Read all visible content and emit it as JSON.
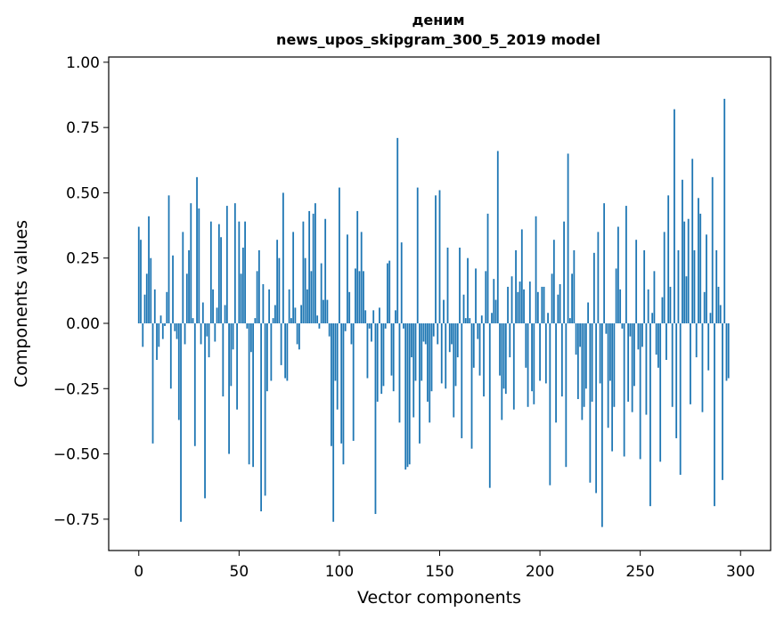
{
  "chart_data": {
    "type": "bar",
    "title_line1": "деним",
    "title_line2": "news_upos_skipgram_300_5_2019 model",
    "xlabel": "Vector components",
    "ylabel": "Components values",
    "xlim": [
      -15,
      315
    ],
    "ylim": [
      -0.87,
      1.02
    ],
    "xticks": [
      0,
      50,
      100,
      150,
      200,
      250,
      300
    ],
    "yticks": [
      -0.75,
      -0.5,
      -0.25,
      0.0,
      0.25,
      0.5,
      0.75,
      1.0
    ],
    "ytick_labels": [
      "−0.75",
      "−0.50",
      "−0.25",
      "0.00",
      "0.25",
      "0.50",
      "0.75",
      "1.00"
    ],
    "bar_color": "#1f77b4",
    "values": [
      0.37,
      0.32,
      -0.09,
      0.11,
      0.19,
      0.41,
      0.25,
      -0.46,
      0.13,
      -0.14,
      -0.09,
      0.03,
      -0.06,
      -0.01,
      0.12,
      0.49,
      -0.25,
      0.26,
      -0.03,
      -0.06,
      -0.37,
      -0.76,
      0.35,
      -0.08,
      0.19,
      0.28,
      0.46,
      0.02,
      -0.47,
      0.56,
      0.44,
      -0.08,
      0.08,
      -0.67,
      -0.05,
      -0.13,
      0.39,
      0.13,
      -0.07,
      0.06,
      0.38,
      0.33,
      -0.28,
      0.07,
      0.45,
      -0.5,
      -0.24,
      -0.1,
      0.46,
      -0.33,
      0.39,
      0.19,
      0.29,
      0.39,
      -0.02,
      -0.54,
      -0.11,
      -0.55,
      0.02,
      0.2,
      0.28,
      -0.72,
      0.15,
      -0.66,
      -0.26,
      0.13,
      -0.22,
      0.02,
      0.07,
      0.32,
      0.25,
      -0.16,
      0.5,
      -0.21,
      -0.22,
      0.13,
      0.02,
      0.35,
      0.06,
      -0.08,
      -0.1,
      0.07,
      0.39,
      0.25,
      0.13,
      0.43,
      0.2,
      0.42,
      0.46,
      0.03,
      -0.02,
      0.23,
      0.09,
      0.4,
      0.09,
      -0.05,
      -0.47,
      -0.76,
      -0.22,
      -0.33,
      0.52,
      -0.46,
      -0.54,
      -0.03,
      0.34,
      0.12,
      -0.08,
      -0.45,
      0.21,
      0.43,
      0.2,
      0.35,
      0.2,
      0.05,
      -0.21,
      -0.02,
      -0.07,
      0.05,
      -0.73,
      -0.3,
      0.06,
      -0.27,
      -0.24,
      -0.02,
      0.23,
      0.24,
      -0.2,
      -0.26,
      0.05,
      0.71,
      -0.38,
      0.31,
      -0.02,
      -0.56,
      -0.55,
      -0.54,
      -0.13,
      -0.36,
      -0.22,
      0.52,
      -0.46,
      -0.22,
      -0.07,
      -0.08,
      -0.3,
      -0.38,
      -0.26,
      -0.05,
      0.49,
      -0.08,
      0.51,
      -0.23,
      0.09,
      -0.25,
      0.29,
      -0.11,
      -0.08,
      -0.36,
      -0.24,
      -0.13,
      0.29,
      -0.44,
      0.11,
      0.02,
      0.25,
      0.02,
      -0.48,
      -0.17,
      0.21,
      -0.06,
      -0.2,
      0.03,
      -0.28,
      0.2,
      0.42,
      -0.63,
      0.04,
      0.17,
      0.09,
      0.66,
      -0.2,
      -0.37,
      -0.25,
      -0.27,
      0.14,
      -0.13,
      0.18,
      -0.33,
      0.28,
      0.12,
      0.16,
      0.36,
      0.13,
      -0.17,
      -0.32,
      0.16,
      -0.26,
      -0.31,
      0.41,
      0.12,
      -0.22,
      0.14,
      0.14,
      -0.23,
      0.04,
      -0.62,
      0.19,
      0.32,
      -0.38,
      0.11,
      0.15,
      -0.28,
      0.39,
      -0.55,
      0.65,
      0.02,
      0.19,
      0.28,
      -0.12,
      -0.29,
      -0.09,
      -0.37,
      -0.32,
      -0.25,
      0.08,
      -0.61,
      -0.3,
      0.27,
      -0.65,
      0.35,
      -0.23,
      -0.78,
      0.46,
      -0.04,
      -0.4,
      -0.22,
      -0.49,
      -0.32,
      0.21,
      0.37,
      0.13,
      -0.02,
      -0.51,
      0.45,
      -0.3,
      -0.05,
      -0.34,
      -0.24,
      0.32,
      -0.1,
      -0.52,
      -0.09,
      0.28,
      -0.35,
      0.13,
      -0.7,
      0.04,
      0.2,
      -0.12,
      -0.17,
      -0.53,
      0.1,
      0.35,
      -0.14,
      0.49,
      0.14,
      -0.32,
      0.82,
      -0.44,
      0.28,
      -0.58,
      0.55,
      0.39,
      0.18,
      0.4,
      -0.31,
      0.63,
      0.28,
      -0.13,
      0.48,
      0.42,
      -0.34,
      0.12,
      0.34,
      -0.18,
      0.04,
      0.56,
      -0.7,
      0.28,
      0.14,
      0.07,
      -0.6,
      0.86,
      -0.22,
      -0.21
    ]
  }
}
